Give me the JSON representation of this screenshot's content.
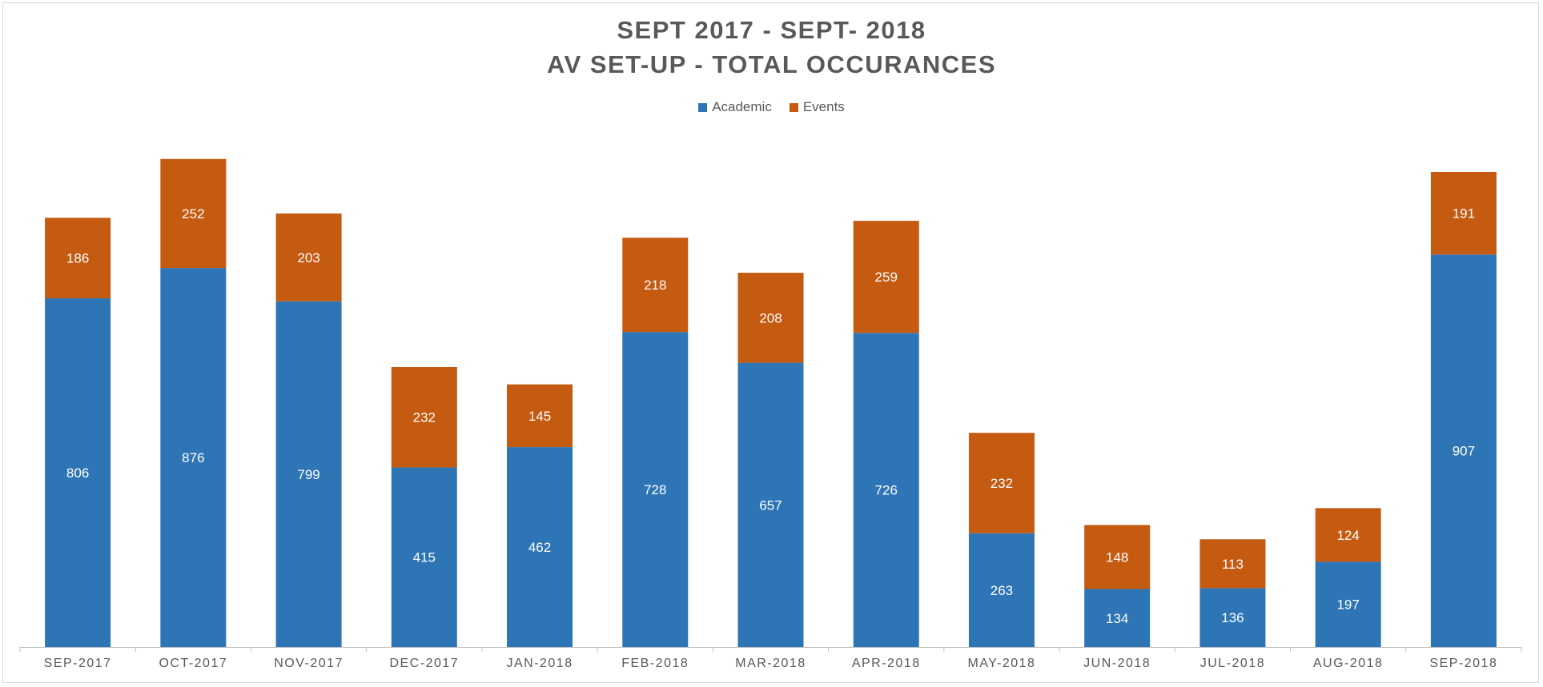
{
  "chart_data": {
    "type": "bar",
    "stacked": true,
    "title": "SEPT 2017 - SEPT- 2018",
    "subtitle": "AV SET-UP - TOTAL OCCURANCES",
    "categories": [
      "SEP-2017",
      "OCT-2017",
      "NOV-2017",
      "DEC-2017",
      "JAN-2018",
      "FEB-2018",
      "MAR-2018",
      "APR-2018",
      "MAY-2018",
      "JUN-2018",
      "JUL-2018",
      "AUG-2018",
      "SEP-2018"
    ],
    "series": [
      {
        "name": "Academic",
        "color": "#2e75b6",
        "values": [
          806,
          876,
          799,
          415,
          462,
          728,
          657,
          726,
          263,
          134,
          136,
          197,
          907
        ]
      },
      {
        "name": "Events",
        "color": "#c55a11",
        "values": [
          186,
          252,
          203,
          232,
          145,
          218,
          208,
          259,
          232,
          148,
          113,
          124,
          191
        ]
      }
    ],
    "legend_position": "top",
    "grid": false,
    "data_labels": true
  }
}
